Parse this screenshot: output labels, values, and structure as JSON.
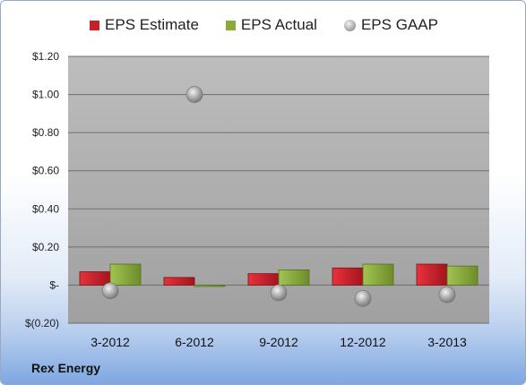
{
  "chart_data": {
    "type": "bar",
    "categories": [
      "3-2012",
      "6-2012",
      "9-2012",
      "12-2012",
      "3-2013"
    ],
    "series": [
      {
        "name": "EPS Estimate",
        "kind": "bar",
        "values": [
          0.07,
          0.04,
          0.06,
          0.09,
          0.11
        ],
        "color": "#c8202a"
      },
      {
        "name": "EPS Actual",
        "kind": "bar",
        "values": [
          0.11,
          0.0,
          0.08,
          0.11,
          0.1
        ],
        "color": "#8aab3c"
      },
      {
        "name": "EPS GAAP",
        "kind": "marker",
        "values": [
          -0.03,
          1.0,
          -0.04,
          -0.07,
          -0.05
        ],
        "color": "#9a9a9a"
      }
    ],
    "ylim": [
      -0.2,
      1.2
    ],
    "yticks": [
      -0.2,
      0,
      0.2,
      0.4,
      0.6,
      0.8,
      1.0,
      1.2
    ],
    "ytick_labels": [
      "$(0.20)",
      "$-",
      "$0.20",
      "$0.40",
      "$0.60",
      "$0.80",
      "$1.00",
      "$1.20"
    ],
    "grid": true,
    "legend_position": "top"
  },
  "company_name": "Rex Energy"
}
